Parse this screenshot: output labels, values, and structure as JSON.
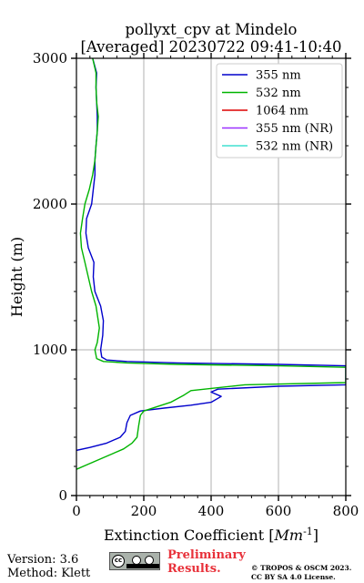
{
  "chart_data": {
    "type": "line",
    "title_line1": "pollyxt_cpv at Mindelo",
    "title_line2": "[Averaged] 20230722 09:41-10:40",
    "xlabel": "Extinction Coefficient [",
    "xlabel_unit": "Mm",
    "xlabel_exp": "-1",
    "xlabel_end": "]",
    "ylabel": "Height (m)",
    "xlim": [
      0,
      800
    ],
    "ylim": [
      0,
      3000
    ],
    "xticks": [
      0,
      200,
      400,
      600,
      800
    ],
    "yticks": [
      0,
      1000,
      2000,
      3000
    ],
    "grid": true,
    "legend_position": "top-right",
    "series": [
      {
        "name": "355 nm",
        "color": "#0000cc",
        "points": [
          [
            0,
            310
          ],
          [
            40,
            330
          ],
          [
            90,
            360
          ],
          [
            130,
            400
          ],
          [
            145,
            440
          ],
          [
            150,
            500
          ],
          [
            160,
            550
          ],
          [
            190,
            580
          ],
          [
            260,
            600
          ],
          [
            340,
            620
          ],
          [
            400,
            640
          ],
          [
            430,
            680
          ],
          [
            400,
            710
          ],
          [
            420,
            730
          ],
          [
            600,
            750
          ],
          [
            800,
            760
          ],
          [
            800,
            890
          ],
          [
            600,
            900
          ],
          [
            300,
            910
          ],
          [
            150,
            920
          ],
          [
            90,
            930
          ],
          [
            75,
            950
          ],
          [
            72,
            1000
          ],
          [
            78,
            1100
          ],
          [
            80,
            1200
          ],
          [
            72,
            1300
          ],
          [
            55,
            1400
          ],
          [
            50,
            1500
          ],
          [
            52,
            1600
          ],
          [
            35,
            1700
          ],
          [
            28,
            1800
          ],
          [
            30,
            1900
          ],
          [
            45,
            2000
          ],
          [
            50,
            2100
          ],
          [
            55,
            2200
          ],
          [
            55,
            2300
          ],
          [
            58,
            2400
          ],
          [
            62,
            2500
          ],
          [
            62,
            2600
          ],
          [
            60,
            2700
          ],
          [
            58,
            2800
          ],
          [
            60,
            2900
          ],
          [
            48,
            3000
          ]
        ]
      },
      {
        "name": "532 nm",
        "color": "#00b400",
        "points": [
          [
            0,
            180
          ],
          [
            30,
            210
          ],
          [
            70,
            250
          ],
          [
            110,
            290
          ],
          [
            140,
            320
          ],
          [
            165,
            360
          ],
          [
            180,
            400
          ],
          [
            185,
            480
          ],
          [
            190,
            550
          ],
          [
            200,
            580
          ],
          [
            280,
            640
          ],
          [
            320,
            690
          ],
          [
            340,
            720
          ],
          [
            500,
            760
          ],
          [
            800,
            775
          ],
          [
            800,
            880
          ],
          [
            600,
            890
          ],
          [
            300,
            900
          ],
          [
            150,
            910
          ],
          [
            80,
            920
          ],
          [
            60,
            940
          ],
          [
            55,
            1000
          ],
          [
            62,
            1050
          ],
          [
            68,
            1150
          ],
          [
            58,
            1300
          ],
          [
            45,
            1400
          ],
          [
            35,
            1500
          ],
          [
            25,
            1600
          ],
          [
            15,
            1700
          ],
          [
            12,
            1800
          ],
          [
            18,
            1900
          ],
          [
            25,
            2000
          ],
          [
            38,
            2100
          ],
          [
            48,
            2200
          ],
          [
            55,
            2300
          ],
          [
            58,
            2400
          ],
          [
            62,
            2500
          ],
          [
            65,
            2600
          ],
          [
            60,
            2700
          ],
          [
            58,
            2800
          ],
          [
            58,
            2900
          ],
          [
            48,
            3000
          ]
        ]
      },
      {
        "name": "1064 nm",
        "color": "#dd0000",
        "points": []
      },
      {
        "name": "355 nm (NR)",
        "color": "#9b30ff",
        "points": []
      },
      {
        "name": "532 nm (NR)",
        "color": "#40e0d0",
        "points": []
      }
    ]
  },
  "footer": {
    "version": "Version: 3.6",
    "method": "Method: Klett",
    "badge_text": "cc",
    "prelim_line1": "Preliminary",
    "prelim_line2": "Results.",
    "copyright_line1": "© TROPOS & OSCM 2023.",
    "copyright_line2": "CC BY SA 4.0 License."
  }
}
